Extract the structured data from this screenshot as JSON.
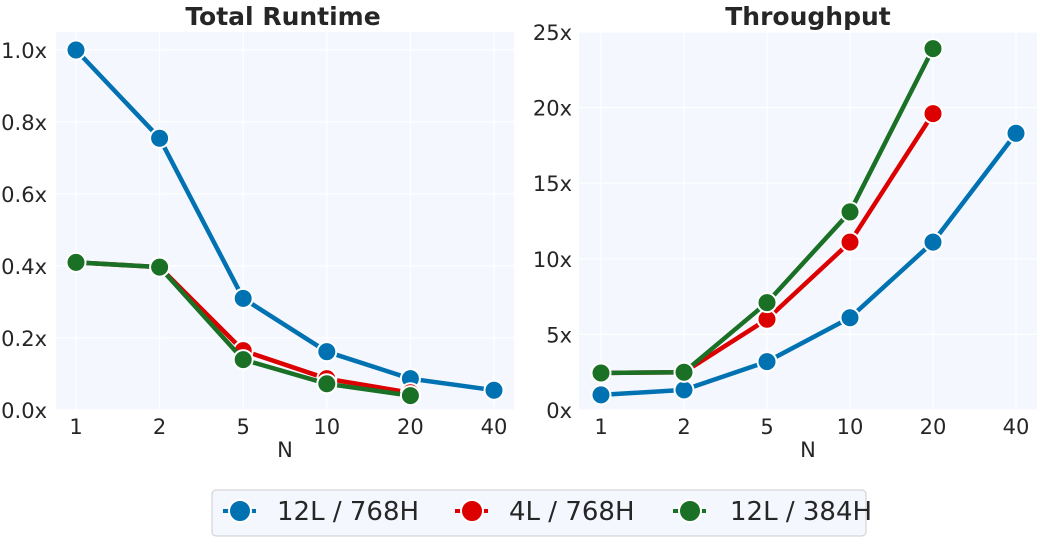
{
  "chart_data": [
    {
      "type": "line",
      "title": "Total Runtime",
      "xlabel": "N",
      "ylabel": "",
      "categories": [
        "1",
        "2",
        "5",
        "10",
        "20",
        "40"
      ],
      "ylim": [
        0,
        1.05
      ],
      "yticks": [
        0.0,
        0.2,
        0.4,
        0.6,
        0.8,
        1.0
      ],
      "ytick_labels": [
        "0.0x",
        "0.2x",
        "0.4x",
        "0.6x",
        "0.8x",
        "1.0x"
      ],
      "grid": true,
      "series": [
        {
          "name": "12L / 768H",
          "color": "#0072b2",
          "values": [
            1.0,
            0.755,
            0.31,
            0.162,
            0.087,
            0.055
          ]
        },
        {
          "name": "4L / 768H",
          "color": "#dd0000",
          "values": [
            0.41,
            0.397,
            0.165,
            0.087,
            0.048,
            null
          ]
        },
        {
          "name": "12L / 384H",
          "color": "#1a7025",
          "values": [
            0.41,
            0.397,
            0.14,
            0.073,
            0.04,
            null
          ]
        }
      ]
    },
    {
      "type": "line",
      "title": "Throughput",
      "xlabel": "N",
      "ylabel": "",
      "categories": [
        "1",
        "2",
        "5",
        "10",
        "20",
        "40"
      ],
      "ylim": [
        0,
        25
      ],
      "yticks": [
        0,
        5,
        10,
        15,
        20,
        25
      ],
      "ytick_labels": [
        "0x",
        "5x",
        "10x",
        "15x",
        "20x",
        "25x"
      ],
      "grid": true,
      "series": [
        {
          "name": "12L / 768H",
          "color": "#0072b2",
          "values": [
            1.0,
            1.33,
            3.2,
            6.1,
            11.1,
            18.3
          ]
        },
        {
          "name": "4L / 768H",
          "color": "#dd0000",
          "values": [
            2.45,
            2.5,
            6.0,
            11.1,
            19.6,
            null
          ]
        },
        {
          "name": "12L / 384H",
          "color": "#1a7025",
          "values": [
            2.45,
            2.5,
            7.1,
            13.1,
            23.9,
            null
          ]
        }
      ]
    }
  ],
  "legend": {
    "placement": "bottom-center",
    "items": [
      {
        "label": "12L / 768H",
        "color": "#0072b2"
      },
      {
        "label": "4L / 768H",
        "color": "#dd0000"
      },
      {
        "label": "12L / 384H",
        "color": "#1a7025"
      }
    ]
  },
  "style": {
    "plot_background": "#f5f7ff",
    "grid_color": "#ffffff",
    "marker_edge": "#ffffff"
  }
}
